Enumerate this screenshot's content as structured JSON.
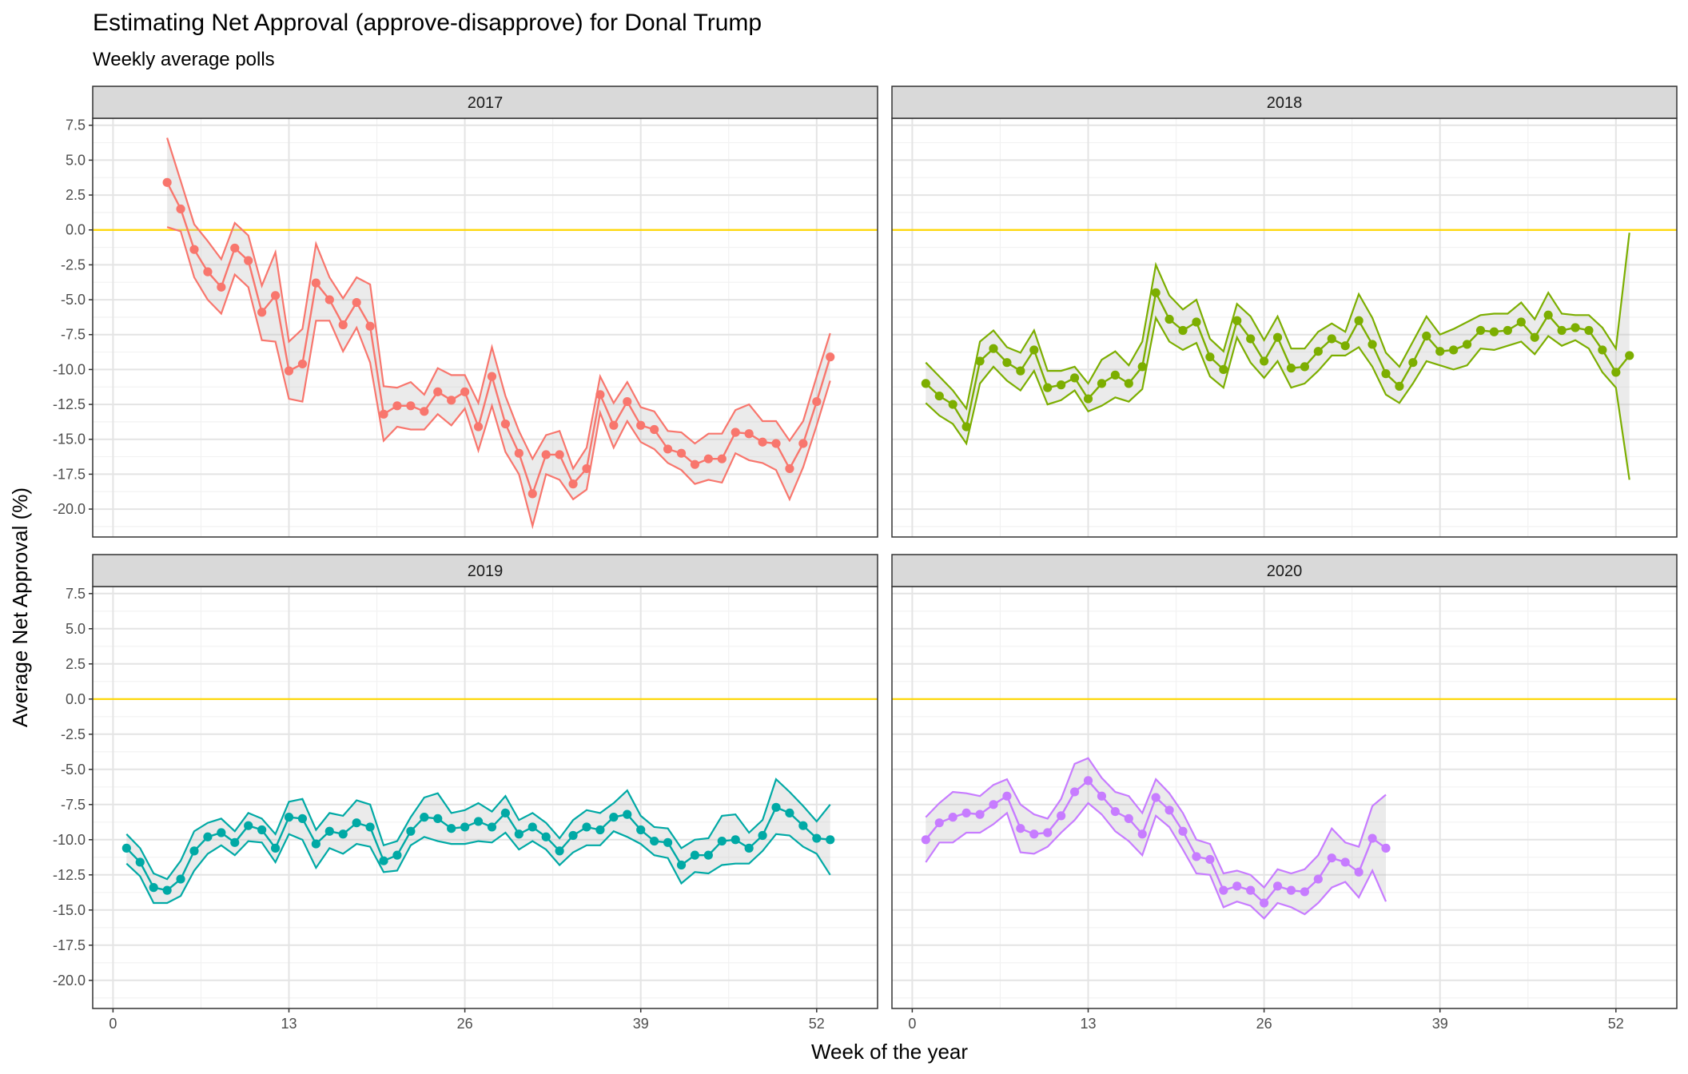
{
  "title": "Estimating Net Approval (approve-disapprove) for Donal Trump",
  "subtitle": "Weekly average polls",
  "x_axis_title": "Week of the year",
  "y_axis_title": "Average Net Approval (%)",
  "chart_data": {
    "type": "line",
    "title": "Estimating Net Approval (approve-disapprove) for Donal Trump",
    "subtitle": "Weekly average polls",
    "xlabel": "Week of the year",
    "ylabel": "Average Net Approval (%)",
    "x_ticks": [
      0,
      13,
      26,
      39,
      52
    ],
    "y_ticks": [
      7.5,
      5.0,
      2.5,
      0.0,
      -2.5,
      -5.0,
      -7.5,
      -10.0,
      -12.5,
      -15.0,
      -17.5,
      -20.0
    ],
    "xlim": [
      -1.5,
      56.5
    ],
    "ylim": [
      -22,
      8
    ],
    "reference_line": {
      "y": 0,
      "color": "#ffd700"
    },
    "grid": true,
    "layout": "facet 2x2",
    "facets": [
      {
        "label": "2017",
        "color": "#f8766d",
        "weeks": [
          4,
          5,
          6,
          7,
          8,
          9,
          10,
          11,
          12,
          13,
          14,
          15,
          16,
          17,
          18,
          19,
          20,
          21,
          22,
          23,
          24,
          25,
          26,
          27,
          28,
          29,
          30,
          31,
          32,
          33,
          34,
          35,
          36,
          37,
          38,
          39,
          40,
          41,
          42,
          43,
          44,
          45,
          46,
          47,
          48,
          49,
          50,
          51,
          52,
          53
        ],
        "mean": [
          3.4,
          1.5,
          -1.4,
          -3,
          -4.1,
          -1.3,
          -2.2,
          -5.9,
          -4.7,
          -10.1,
          -9.6,
          -3.8,
          -5,
          -6.8,
          -5.2,
          -6.9,
          -13.2,
          -12.6,
          -12.6,
          -13,
          -11.6,
          -12.2,
          -11.6,
          -14.1,
          -10.5,
          -13.9,
          -16,
          -18.9,
          -16.1,
          -16.1,
          -18.2,
          -17.1,
          -11.8,
          -14,
          -12.3,
          -14,
          -14.3,
          -15.7,
          -16,
          -16.8,
          -16.4,
          -16.4,
          -14.5,
          -14.6,
          -15.2,
          -15.3,
          -17.1,
          -15.3,
          -12.3,
          -9.1
        ],
        "upper": [
          6.6,
          3.5,
          0.4,
          -0.8,
          -2.1,
          0.5,
          -0.4,
          -4,
          -1.6,
          -8,
          -7.1,
          -1,
          -3.4,
          -4.9,
          -3.4,
          -3.9,
          -11.2,
          -11.3,
          -10.9,
          -11.8,
          -9.9,
          -10.4,
          -10.4,
          -12.4,
          -8.4,
          -11.9,
          -14.4,
          -16.4,
          -14.7,
          -14.4,
          -17.1,
          -15.6,
          -10.5,
          -12.4,
          -10.9,
          -12.7,
          -13,
          -14.4,
          -14.5,
          -15.3,
          -14.6,
          -14.6,
          -12.9,
          -12.5,
          -13.7,
          -13.7,
          -15.1,
          -13.7,
          -10.5,
          -7.4
        ],
        "lower": [
          0.2,
          -0.1,
          -3.4,
          -5,
          -6,
          -3.2,
          -4.1,
          -7.9,
          -8,
          -12.1,
          -12.3,
          -6.5,
          -6.5,
          -8.7,
          -7,
          -9.5,
          -15.1,
          -14.1,
          -14.3,
          -14.3,
          -13.2,
          -14,
          -12.8,
          -15.8,
          -12.6,
          -15.9,
          -17.5,
          -21.2,
          -17.5,
          -17.9,
          -19.3,
          -18.6,
          -13.1,
          -15.6,
          -13.7,
          -15.2,
          -15.7,
          -16.7,
          -17.2,
          -18.2,
          -17.9,
          -18.1,
          -16,
          -16.5,
          -16.7,
          -17.2,
          -19.3,
          -17,
          -14,
          -10.8
        ]
      },
      {
        "label": "2018",
        "color": "#7cae00",
        "weeks": [
          1,
          2,
          3,
          4,
          5,
          6,
          7,
          8,
          9,
          10,
          11,
          12,
          13,
          14,
          15,
          16,
          17,
          18,
          19,
          20,
          21,
          22,
          23,
          24,
          25,
          26,
          27,
          28,
          29,
          30,
          31,
          32,
          33,
          34,
          35,
          36,
          37,
          38,
          39,
          40,
          41,
          42,
          43,
          44,
          45,
          46,
          47,
          48,
          49,
          50,
          51,
          52,
          53
        ],
        "mean": [
          -11,
          -11.9,
          -12.5,
          -14.1,
          -9.4,
          -8.5,
          -9.5,
          -10.1,
          -8.6,
          -11.3,
          -11.1,
          -10.6,
          -12.1,
          -11,
          -10.4,
          -11,
          -9.8,
          -4.5,
          -6.4,
          -7.2,
          -6.6,
          -9.1,
          -10,
          -6.5,
          -7.8,
          -9.4,
          -7.7,
          -9.9,
          -9.8,
          -8.7,
          -7.8,
          -8.3,
          -6.5,
          -8.2,
          -10.3,
          -11.2,
          -9.5,
          -7.6,
          -8.7,
          -8.6,
          -8.2,
          -7.2,
          -7.3,
          -7.2,
          -6.6,
          -7.7,
          -6.1,
          -7.2,
          -7,
          -7.2,
          -8.6,
          -10.2,
          -9
        ],
        "upper": [
          -9.5,
          -10.5,
          -11.5,
          -12.8,
          -8,
          -7.2,
          -8.4,
          -8.8,
          -7.2,
          -10.1,
          -10.1,
          -9.8,
          -11,
          -9.3,
          -8.7,
          -9.7,
          -8,
          -2.5,
          -4.7,
          -5.7,
          -5,
          -7.8,
          -8.7,
          -5.3,
          -6.2,
          -7.9,
          -6.2,
          -8.5,
          -8.5,
          -7.3,
          -6.7,
          -7.3,
          -4.6,
          -6.3,
          -8.8,
          -9.8,
          -8,
          -6.2,
          -7.5,
          -7.1,
          -6.6,
          -6.1,
          -6,
          -6,
          -5.2,
          -6.4,
          -4.5,
          -6,
          -6.1,
          -6.1,
          -7,
          -8.5,
          -0.2
        ],
        "lower": [
          -12.4,
          -13.3,
          -13.9,
          -15.3,
          -11,
          -9.8,
          -10.8,
          -11.5,
          -10.1,
          -12.5,
          -12.2,
          -11.5,
          -13,
          -12.6,
          -12,
          -12.3,
          -11.4,
          -6.3,
          -8,
          -8.6,
          -8.1,
          -10.5,
          -11.3,
          -7.7,
          -9.5,
          -10.6,
          -9.4,
          -11.3,
          -11,
          -10.1,
          -9,
          -9,
          -8.4,
          -9.8,
          -11.8,
          -12.4,
          -11,
          -9.4,
          -9.7,
          -10,
          -9.7,
          -8.5,
          -8.6,
          -8.3,
          -8,
          -8.9,
          -7.6,
          -8.3,
          -7.9,
          -8.5,
          -10.2,
          -11.3,
          -17.9
        ]
      },
      {
        "label": "2019",
        "color": "#00a9a5",
        "weeks": [
          1,
          2,
          3,
          4,
          5,
          6,
          7,
          8,
          9,
          10,
          11,
          12,
          13,
          14,
          15,
          16,
          17,
          18,
          19,
          20,
          21,
          22,
          23,
          24,
          25,
          26,
          27,
          28,
          29,
          30,
          31,
          32,
          33,
          34,
          35,
          36,
          37,
          38,
          39,
          40,
          41,
          42,
          43,
          44,
          45,
          46,
          47,
          48,
          49,
          50,
          51,
          52,
          53
        ],
        "mean": [
          -10.6,
          -11.6,
          -13.4,
          -13.6,
          -12.8,
          -10.8,
          -9.8,
          -9.5,
          -10.2,
          -9,
          -9.3,
          -10.6,
          -8.4,
          -8.5,
          -10.3,
          -9.4,
          -9.6,
          -8.8,
          -9.1,
          -11.5,
          -11.1,
          -9.4,
          -8.4,
          -8.5,
          -9.2,
          -9.1,
          -8.7,
          -9.1,
          -8.1,
          -9.6,
          -9.1,
          -9.8,
          -10.8,
          -9.7,
          -9.1,
          -9.3,
          -8.4,
          -8.2,
          -9.3,
          -10.1,
          -10.2,
          -11.8,
          -11.1,
          -11.1,
          -10.1,
          -10,
          -10.6,
          -9.7,
          -7.7,
          -8.1,
          -9,
          -9.9,
          -10
        ],
        "upper": [
          -9.6,
          -10.6,
          -12.4,
          -12.8,
          -11.5,
          -9.4,
          -8.8,
          -8.5,
          -9.4,
          -8.1,
          -8.5,
          -9.6,
          -7.3,
          -7.1,
          -9.3,
          -8.1,
          -8.3,
          -7.2,
          -7.5,
          -10.4,
          -10.1,
          -8.4,
          -7,
          -6.7,
          -8.1,
          -7.9,
          -7.4,
          -8,
          -6.9,
          -8.6,
          -8.1,
          -8.8,
          -9.9,
          -8.6,
          -7.9,
          -8.1,
          -7.4,
          -6.5,
          -8.3,
          -9.1,
          -9.2,
          -10.6,
          -10,
          -9.9,
          -8.3,
          -8.2,
          -9.5,
          -8.6,
          -5.7,
          -6.6,
          -7.6,
          -8.7,
          -7.5
        ],
        "lower": [
          -11.7,
          -12.6,
          -14.5,
          -14.5,
          -14,
          -12.2,
          -11,
          -10.4,
          -11.1,
          -10.1,
          -10.2,
          -11.6,
          -9.6,
          -10,
          -12,
          -10.6,
          -11,
          -10.3,
          -10.5,
          -12.3,
          -12.2,
          -10.4,
          -9.8,
          -10.1,
          -10.3,
          -10.3,
          -10.1,
          -10.2,
          -9.5,
          -10.7,
          -10.1,
          -10.7,
          -11.8,
          -10.9,
          -10.4,
          -10.4,
          -9.4,
          -9.8,
          -10.3,
          -11.1,
          -11.3,
          -13.1,
          -12.3,
          -12.4,
          -11.8,
          -11.7,
          -11.7,
          -10.8,
          -9.6,
          -9.7,
          -10.5,
          -11,
          -12.5
        ]
      },
      {
        "label": "2020",
        "color": "#c77cff",
        "weeks": [
          1,
          2,
          3,
          4,
          5,
          6,
          7,
          8,
          9,
          10,
          11,
          12,
          13,
          14,
          15,
          16,
          17,
          18,
          19,
          20,
          21,
          22,
          23,
          24,
          25,
          26,
          27,
          28,
          29,
          30,
          31,
          32,
          33,
          34,
          35
        ],
        "mean": [
          -10,
          -8.8,
          -8.4,
          -8.1,
          -8.2,
          -7.5,
          -6.9,
          -9.2,
          -9.6,
          -9.5,
          -8.3,
          -6.6,
          -5.8,
          -6.9,
          -8,
          -8.5,
          -9.6,
          -7,
          -7.9,
          -9.4,
          -11.2,
          -11.4,
          -13.6,
          -13.3,
          -13.6,
          -14.5,
          -13.3,
          -13.6,
          -13.7,
          -12.8,
          -11.3,
          -11.6,
          -12.3,
          -9.9,
          -10.6
        ],
        "upper": [
          -8.4,
          -7.4,
          -6.6,
          -6.7,
          -6.9,
          -6.1,
          -5.7,
          -7.5,
          -8.2,
          -8.5,
          -7.1,
          -4.6,
          -4.2,
          -5.6,
          -6.6,
          -6.9,
          -8.1,
          -5.7,
          -6.7,
          -8.1,
          -10,
          -10.3,
          -12.4,
          -12.2,
          -12.5,
          -13.4,
          -12.1,
          -12.4,
          -12.1,
          -11.1,
          -9.2,
          -10.2,
          -10.5,
          -7.6,
          -6.8
        ],
        "lower": [
          -11.6,
          -10.2,
          -10.2,
          -9.5,
          -9.5,
          -8.9,
          -8.1,
          -10.9,
          -11,
          -10.5,
          -9.5,
          -8.6,
          -7.4,
          -8.2,
          -9.4,
          -10.1,
          -11.1,
          -8.3,
          -9.1,
          -10.7,
          -12.4,
          -12.5,
          -14.8,
          -14.4,
          -14.7,
          -15.6,
          -14.5,
          -14.8,
          -15.3,
          -14.5,
          -13.4,
          -13,
          -14.1,
          -12.2,
          -14.4
        ]
      }
    ]
  }
}
